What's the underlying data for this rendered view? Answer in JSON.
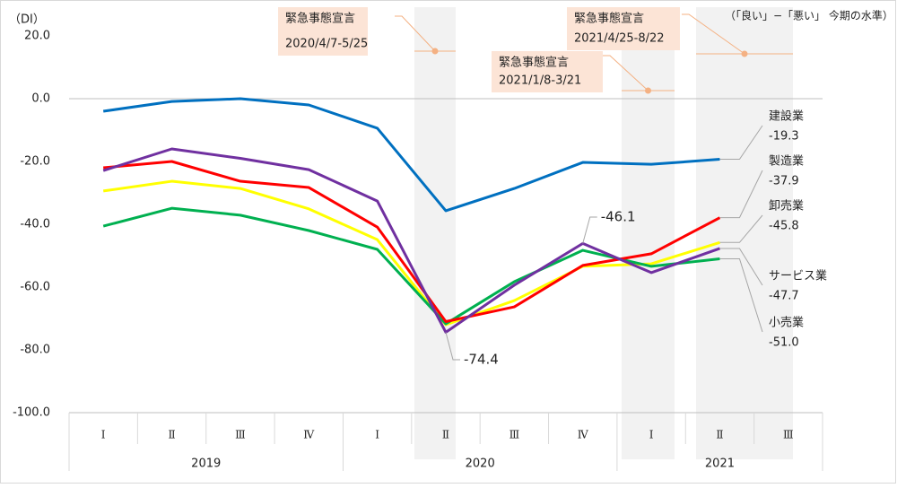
{
  "chart_data": {
    "type": "line",
    "unit_label": "（DI）",
    "note": "（「良い」−「悪い」 今期の水準）",
    "categories": [
      "Ⅰ",
      "Ⅱ",
      "Ⅲ",
      "Ⅳ",
      "Ⅰ",
      "Ⅱ",
      "Ⅲ",
      "Ⅳ",
      "Ⅰ",
      "Ⅱ",
      "Ⅲ"
    ],
    "years": [
      "2019",
      "2020",
      "2021"
    ],
    "ylim": [
      -100,
      20
    ],
    "yticks": [
      {
        "value": 20,
        "label": "20.0"
      },
      {
        "value": 0,
        "label": "0.0"
      },
      {
        "value": -20,
        "label": "-20.0"
      },
      {
        "value": -40,
        "label": "-40.0"
      },
      {
        "value": -60,
        "label": "-60.0"
      },
      {
        "value": -80,
        "label": "-80.0"
      },
      {
        "value": -100,
        "label": "-100.0"
      }
    ],
    "series": [
      {
        "name": "建設業",
        "color": "#0070c0",
        "values": [
          -4,
          -0.9,
          0,
          -2,
          -9.4,
          -35.7,
          -28.6,
          -20.3,
          -20.9,
          -19.3,
          null
        ],
        "end_label": "-19.3"
      },
      {
        "name": "製造業",
        "color": "#ff0000",
        "values": [
          -22,
          -20,
          -26.3,
          -28.3,
          -40.9,
          -71,
          -66.3,
          -53.1,
          -49.4,
          -37.9,
          null
        ],
        "end_label": "-37.9"
      },
      {
        "name": "卸売業",
        "color": "#ffff00",
        "values": [
          -29.4,
          -26.3,
          -28.6,
          -35.1,
          -44.9,
          -72,
          -64.3,
          -53.4,
          -52.6,
          -45.8,
          null
        ],
        "end_label": "-45.8"
      },
      {
        "name": "サービス業",
        "color": "#7030a0",
        "values": [
          -22.9,
          -16,
          -19,
          -22.6,
          -32.6,
          -74.4,
          -59.4,
          -46.1,
          -55.4,
          -47.7,
          null
        ],
        "end_label": "-47.7"
      },
      {
        "name": "小売業",
        "color": "#00b050",
        "values": [
          -40.6,
          -34.9,
          -37.1,
          -42,
          -48,
          -71.7,
          -58.3,
          -48.3,
          -53.4,
          -51,
          null
        ],
        "end_label": "-51.0"
      }
    ],
    "declarations": [
      {
        "text": "緊急事態宣言",
        "period": "2020/4/7-5/25"
      },
      {
        "text": "緊急事態宣言",
        "period": "2021/1/8-3/21"
      },
      {
        "text": "緊急事態宣言",
        "period": "2021/4/25-8/22"
      }
    ]
  }
}
